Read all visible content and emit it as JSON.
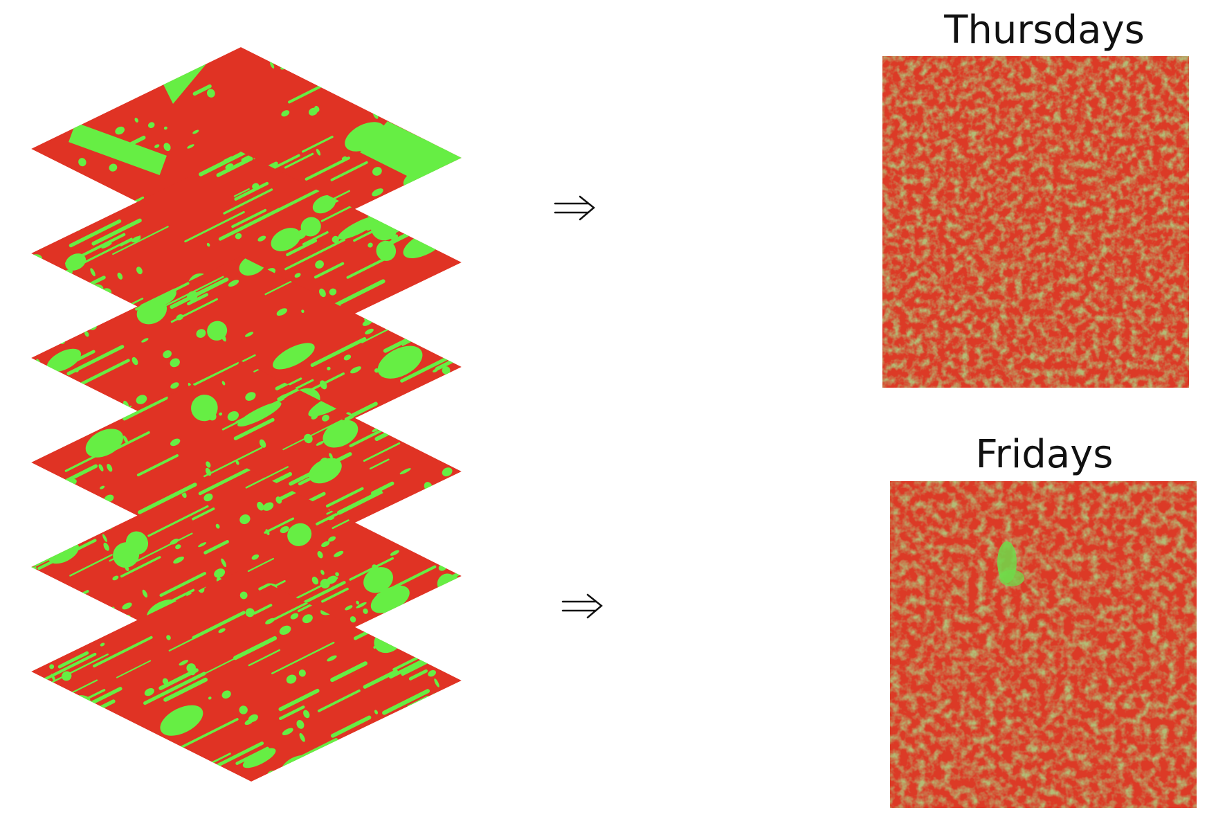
{
  "panels": [
    {
      "label": "Thursdays"
    },
    {
      "label": "Fridays"
    }
  ]
}
